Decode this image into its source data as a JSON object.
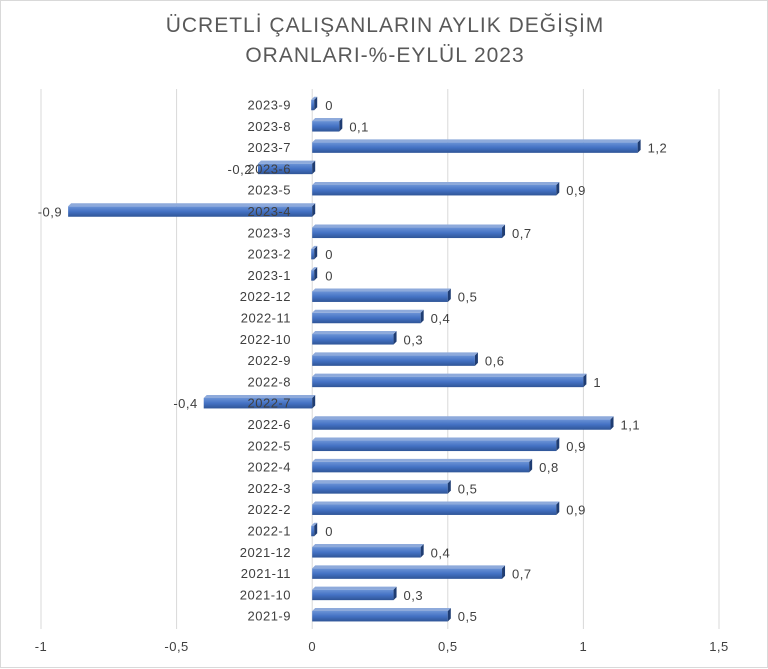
{
  "chart_data": {
    "type": "bar",
    "orientation": "horizontal",
    "title": "ÜCRETLİ ÇALIŞANLARIN AYLIK DEĞİŞİM\nORANLARI-%-EYLÜL 2023",
    "categories": [
      "2023-9",
      "2023-8",
      "2023-7",
      "2023-6",
      "2023-5",
      "2023-4",
      "2023-3",
      "2023-2",
      "2023-1",
      "2022-12",
      "2022-11",
      "2022-10",
      "2022-9",
      "2022-8",
      "2022-7",
      "2022-6",
      "2022-5",
      "2022-4",
      "2022-3",
      "2022-2",
      "2022-1",
      "2021-12",
      "2021-11",
      "2021-10",
      "2021-9"
    ],
    "values": [
      0,
      0.1,
      1.2,
      -0.2,
      0.9,
      -0.9,
      0.7,
      0,
      0,
      0.5,
      0.4,
      0.3,
      0.6,
      1,
      -0.4,
      1.1,
      0.9,
      0.8,
      0.5,
      0.9,
      0,
      0.4,
      0.7,
      0.3,
      0.5
    ],
    "data_labels": [
      "0",
      "0,1",
      "1,2",
      "-0,2",
      "0,9",
      "-0,9",
      "0,7",
      "0",
      "0",
      "0,5",
      "0,4",
      "0,3",
      "0,6",
      "1",
      "-0,4",
      "1,1",
      "0,9",
      "0,8",
      "0,5",
      "0,9",
      "0",
      "0,4",
      "0,7",
      "0,3",
      "0,5"
    ],
    "x_ticks": [
      "-1",
      "-0,5",
      "0",
      "0,5",
      "1",
      "1,5"
    ],
    "xlim": [
      -1,
      1.5
    ],
    "xlabel": "",
    "ylabel": "",
    "grid": "vertical",
    "legend": "none",
    "bar_color": "#4472c4"
  }
}
